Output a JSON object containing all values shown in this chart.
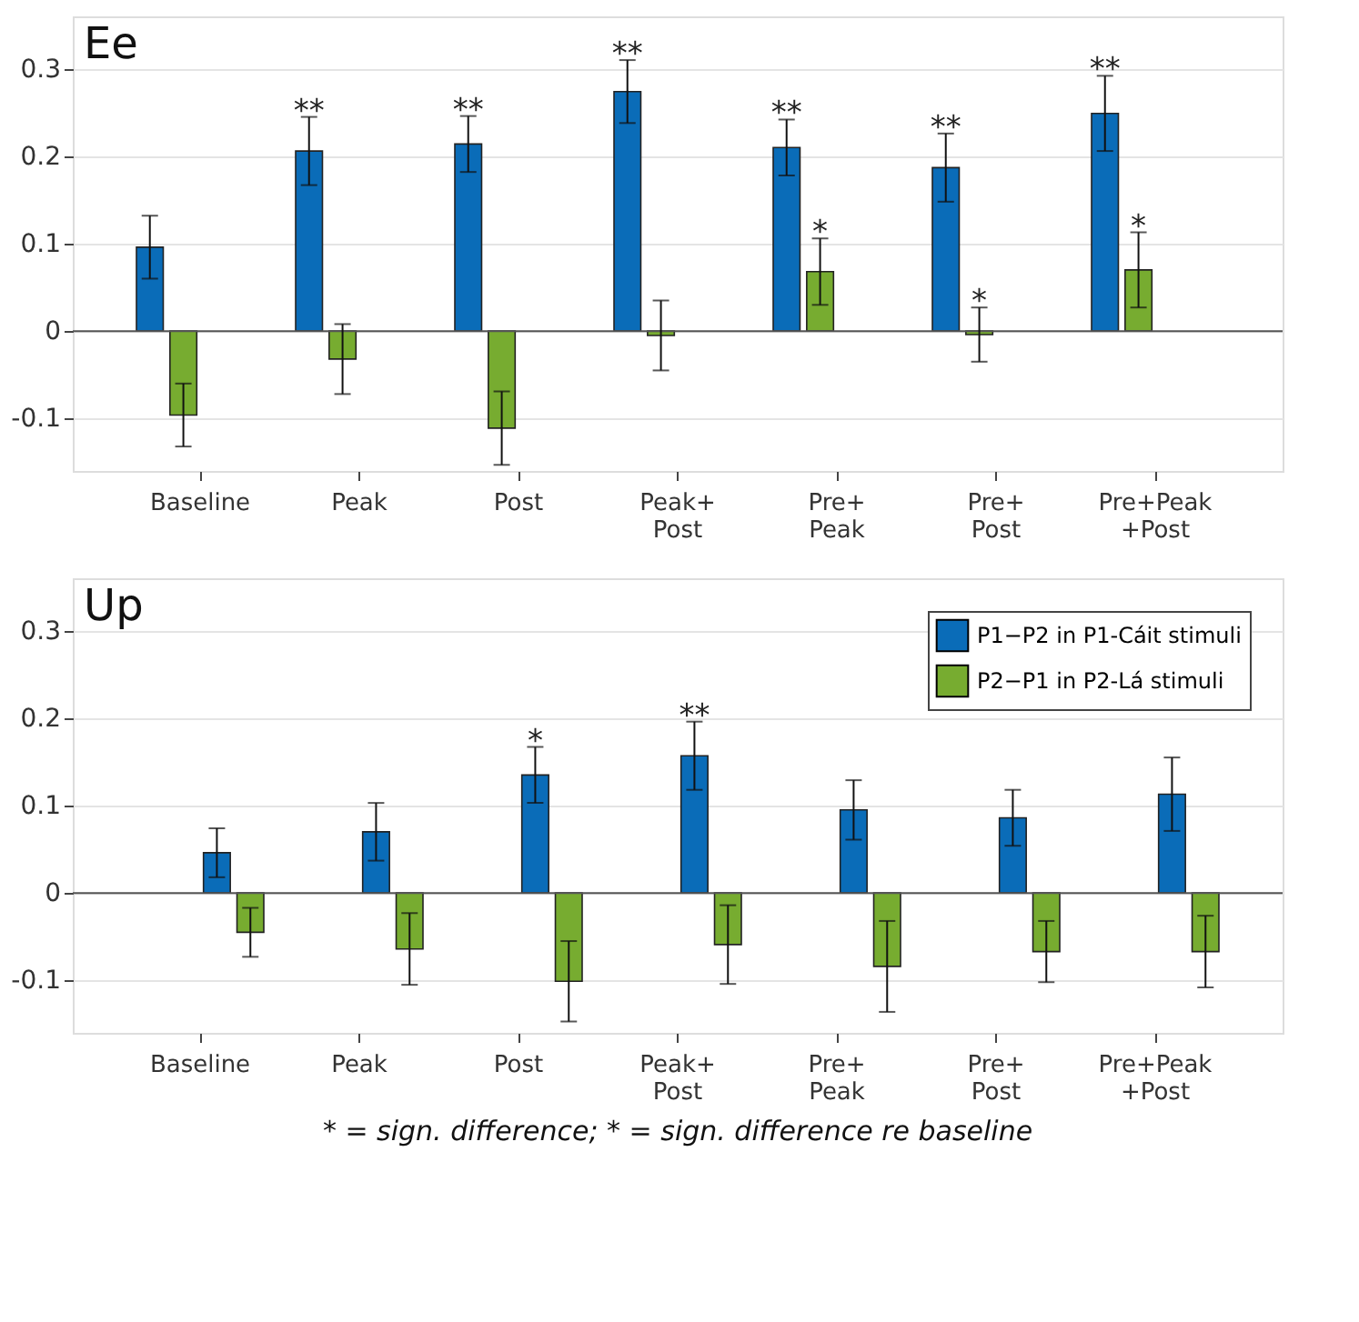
{
  "chart_data": [
    {
      "type": "bar",
      "title": "Ee",
      "categories": [
        "Baseline",
        "Peak",
        "Post",
        "Peak+\nPost",
        "Pre+\nPeak",
        "Pre+\nPost",
        "Pre+Peak\n+Post"
      ],
      "series": [
        {
          "color": "#0a6cb8",
          "values": [
            0.096,
            0.206,
            0.214,
            0.274,
            0.21,
            0.187,
            0.249
          ],
          "errors": [
            0.036,
            0.039,
            0.032,
            0.036,
            0.032,
            0.039,
            0.043
          ],
          "value_labels": [
            null,
            "**",
            "**",
            "**",
            "**",
            "**",
            "**"
          ]
        },
        {
          "color": "#77ac30",
          "values": [
            -0.096,
            -0.032,
            -0.111,
            -0.005,
            0.068,
            -0.004,
            0.07
          ],
          "errors": [
            0.036,
            0.04,
            0.042,
            0.04,
            0.038,
            0.031,
            0.043
          ],
          "value_labels": [
            null,
            null,
            null,
            null,
            "*",
            "*",
            "*"
          ]
        }
      ],
      "ylim": [
        -0.16,
        0.36
      ],
      "yticks": [
        -0.1,
        0,
        0.1,
        0.2,
        0.3
      ],
      "grid": "y",
      "legend": false
    },
    {
      "type": "bar",
      "title": "Up",
      "categories": [
        "Baseline",
        "Peak",
        "Post",
        "Peak+\nPost",
        "Pre+\nPeak",
        "Pre+\nPost",
        "Pre+Peak\n+Post"
      ],
      "series": [
        {
          "name": "P1−P2 in P1-Cáit stimuli",
          "color": "#0a6cb8",
          "values": [
            0.046,
            0.07,
            0.135,
            0.157,
            0.095,
            0.086,
            0.113
          ],
          "errors": [
            0.028,
            0.033,
            0.032,
            0.039,
            0.034,
            0.032,
            0.042
          ],
          "value_labels": [
            null,
            null,
            "*",
            "**",
            null,
            null,
            null
          ]
        },
        {
          "name": "P2−P1 in P2-Lá stimuli",
          "color": "#77ac30",
          "values": [
            -0.045,
            -0.064,
            -0.101,
            -0.059,
            -0.084,
            -0.067,
            -0.067
          ],
          "errors": [
            0.028,
            0.041,
            0.046,
            0.045,
            0.052,
            0.035,
            0.041
          ]
        }
      ],
      "ylim": [
        -0.16,
        0.36
      ],
      "yticks": [
        -0.1,
        0,
        0.1,
        0.2,
        0.3
      ],
      "grid": "y",
      "legend": "top right",
      "annotations": [
        "* = sign. difference; * = sign. difference re baseline"
      ]
    }
  ]
}
